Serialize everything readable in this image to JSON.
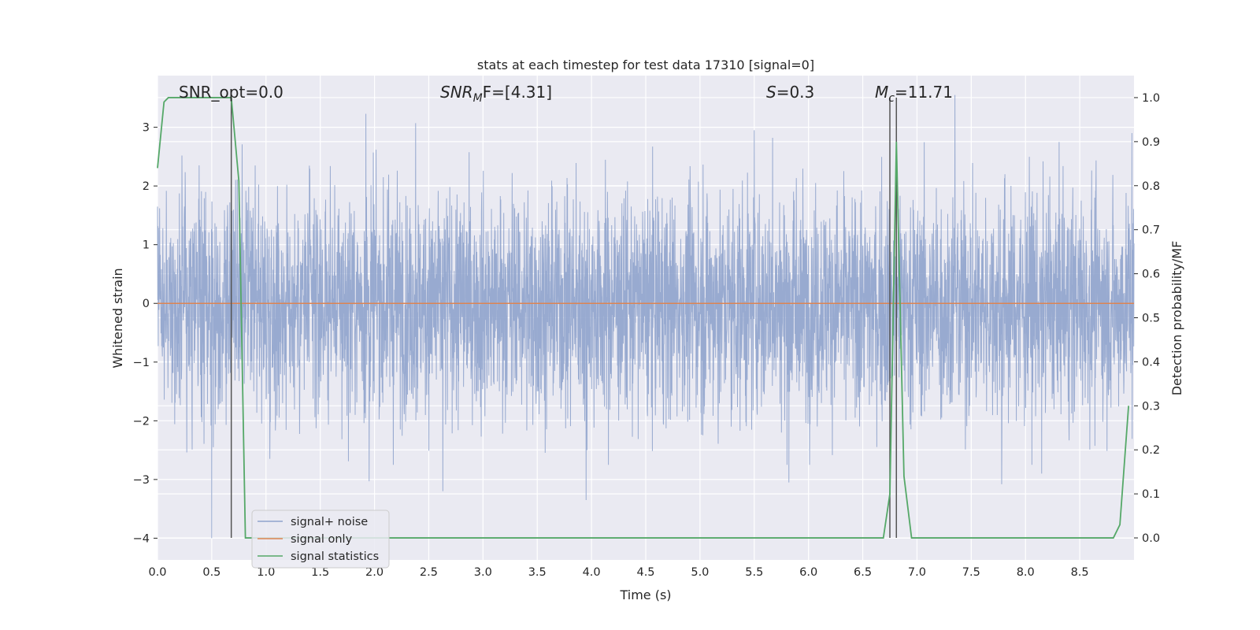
{
  "chart_data": {
    "type": "line",
    "title": "stats at each timestep for test data 17310 [signal=0]",
    "xlabel": "Time (s)",
    "ylabel_left": "Whitened strain",
    "ylabel_right": "Detection probability/MF",
    "xlim": [
      0,
      9.0
    ],
    "ylim_left": [
      -4.37,
      3.88
    ],
    "ylim_right": [
      -0.05,
      1.05
    ],
    "x_ticks": [
      "0.0",
      "0.5",
      "1.0",
      "1.5",
      "2.0",
      "2.5",
      "3.0",
      "3.5",
      "4.0",
      "4.5",
      "5.0",
      "5.5",
      "6.0",
      "6.5",
      "7.0",
      "7.5",
      "8.0",
      "8.5"
    ],
    "y_ticks_left": [
      "3",
      "2",
      "1",
      "0",
      "−1",
      "−2",
      "−3",
      "−4"
    ],
    "y_ticks_right": [
      "1.0",
      "0.9",
      "0.8",
      "0.7",
      "0.6",
      "0.5",
      "0.4",
      "0.3",
      "0.2",
      "0.1",
      "0.0"
    ],
    "grid": true,
    "legend_position": "lower-left",
    "annotations": {
      "snr_opt": "SNR_opt=0.0",
      "snr_mf_sym": "SNR",
      "snr_mf_sub": "M",
      "snr_mf_rest": "F=[4.31]",
      "s_sym": "S",
      "s_rest": "=0.3",
      "mc_sym": "M",
      "mc_sub": "c",
      "mc_rest": "=11.71"
    },
    "vertical_markers": [
      0.68,
      6.75,
      6.81
    ],
    "series": [
      {
        "name": "signal+ noise",
        "color": "#8fa3cc",
        "axis": "left",
        "noise_std": 1.0,
        "spikes": [
          {
            "x": 0.5,
            "y": -4.0
          },
          {
            "x": 1.92,
            "y": 3.23
          },
          {
            "x": 1.95,
            "y": -3.03
          },
          {
            "x": 2.38,
            "y": 3.07
          },
          {
            "x": 2.63,
            "y": -3.2
          },
          {
            "x": 3.95,
            "y": -3.35
          },
          {
            "x": 5.5,
            "y": 2.95
          },
          {
            "x": 5.67,
            "y": 2.82
          },
          {
            "x": 5.82,
            "y": -3.05
          },
          {
            "x": 7.35,
            "y": 3.55
          },
          {
            "x": 7.78,
            "y": -3.08
          },
          {
            "x": 8.15,
            "y": -2.9
          },
          {
            "x": 8.98,
            "y": 2.9
          }
        ]
      },
      {
        "name": "signal only",
        "color": "#dd8452",
        "axis": "left",
        "x": [
          0,
          9.0
        ],
        "y": [
          0,
          0
        ]
      },
      {
        "name": "signal statistics",
        "color": "#55a868",
        "axis": "right",
        "x": [
          0,
          0.06,
          0.1,
          0.5,
          0.68,
          0.75,
          0.81,
          1.0,
          6.0,
          6.69,
          6.75,
          6.81,
          6.88,
          6.95,
          8.0,
          8.81,
          8.87,
          8.95
        ],
        "y": [
          0.84,
          0.99,
          1.0,
          1.0,
          1.0,
          0.81,
          0.0,
          0.0,
          0.0,
          0.0,
          0.1,
          0.9,
          0.14,
          0.0,
          0.0,
          0.0,
          0.03,
          0.3
        ]
      }
    ]
  }
}
